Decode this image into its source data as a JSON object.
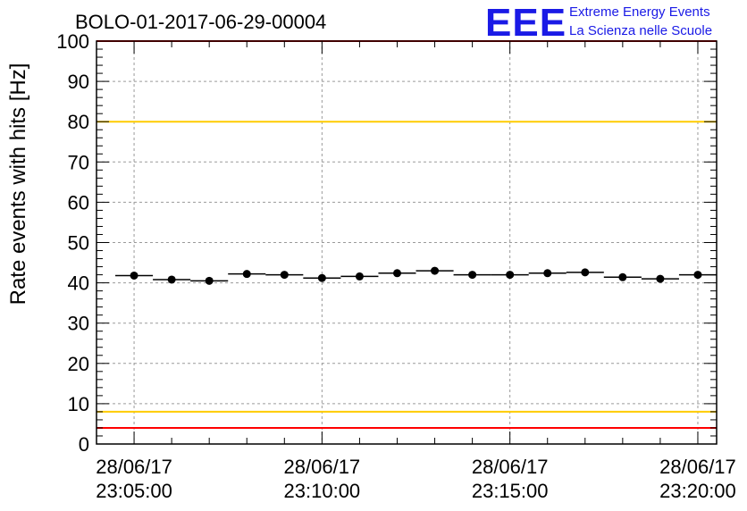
{
  "chart_data": {
    "type": "scatter",
    "title": "BOLO-01-2017-06-29-00004",
    "ylabel": "Rate events with hits [Hz]",
    "xlabel": "",
    "ylim": [
      0,
      100
    ],
    "yticks": [
      0,
      10,
      20,
      30,
      40,
      50,
      60,
      70,
      80,
      90,
      100
    ],
    "xlim": [
      "2017-06-28 23:04:00",
      "2017-06-28 23:20:30"
    ],
    "xticks": [
      {
        "time": "2017-06-28 23:05:00",
        "label_date": "28/06/17",
        "label_time": "23:05:00"
      },
      {
        "time": "2017-06-28 23:10:00",
        "label_date": "28/06/17",
        "label_time": "23:10:00"
      },
      {
        "time": "2017-06-28 23:15:00",
        "label_date": "28/06/17",
        "label_time": "23:15:00"
      },
      {
        "time": "2017-06-28 23:20:00",
        "label_date": "28/06/17",
        "label_time": "23:20:00"
      }
    ],
    "grid": true,
    "bin_width_seconds": 60,
    "series": [
      {
        "x": [
          "2017-06-28 23:05:00",
          "2017-06-28 23:06:00",
          "2017-06-28 23:07:00",
          "2017-06-28 23:08:00",
          "2017-06-28 23:09:00",
          "2017-06-28 23:10:00",
          "2017-06-28 23:11:00",
          "2017-06-28 23:12:00",
          "2017-06-28 23:13:00",
          "2017-06-28 23:14:00",
          "2017-06-28 23:15:00",
          "2017-06-28 23:16:00",
          "2017-06-28 23:17:00",
          "2017-06-28 23:18:00",
          "2017-06-28 23:19:00",
          "2017-06-28 23:20:00"
        ],
        "y": [
          41.8,
          40.8,
          40.5,
          42.2,
          42.0,
          41.2,
          41.6,
          42.4,
          43.0,
          42.0,
          42.0,
          42.4,
          42.6,
          41.4,
          41.0,
          42.0
        ],
        "color": "#000000"
      }
    ],
    "reference_lines": [
      {
        "y": 100,
        "color": "#ff0000"
      },
      {
        "y": 80,
        "color": "#ffcc00"
      },
      {
        "y": 8,
        "color": "#ffcc00"
      },
      {
        "y": 4,
        "color": "#ff0000"
      }
    ]
  },
  "logo": {
    "mark": "EEE",
    "line1": "Extreme Energy Events",
    "line2": "La Scienza nelle Scuole",
    "color": "#1a1ae6"
  }
}
